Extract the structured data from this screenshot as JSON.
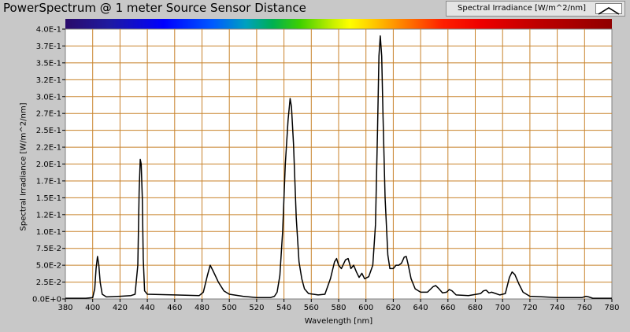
{
  "chart_data": {
    "type": "line",
    "title": "PowerSpectrum @ 1 meter Source Sensor Distance",
    "xlabel": "Wavelength [nm]",
    "ylabel": "Spectral Irradiance [W/m^2/nm]",
    "xlim": [
      380,
      780
    ],
    "ylim": [
      0,
      0.4
    ],
    "grid": true,
    "legend_position": "top-right",
    "x_ticks": [
      380,
      400,
      420,
      440,
      460,
      480,
      500,
      520,
      540,
      560,
      580,
      600,
      620,
      640,
      660,
      680,
      700,
      720,
      740,
      760,
      780
    ],
    "y_ticks": [
      {
        "value": 0.0,
        "label": "0.0E+0"
      },
      {
        "value": 0.025,
        "label": "2.5E-2"
      },
      {
        "value": 0.05,
        "label": "5.0E-2"
      },
      {
        "value": 0.075,
        "label": "7.5E-2"
      },
      {
        "value": 0.1,
        "label": "1.0E-1"
      },
      {
        "value": 0.125,
        "label": "1.2E-1"
      },
      {
        "value": 0.15,
        "label": "1.5E-1"
      },
      {
        "value": 0.175,
        "label": "1.7E-1"
      },
      {
        "value": 0.2,
        "label": "2.0E-1"
      },
      {
        "value": 0.225,
        "label": "2.2E-1"
      },
      {
        "value": 0.25,
        "label": "2.5E-1"
      },
      {
        "value": 0.275,
        "label": "2.7E-1"
      },
      {
        "value": 0.3,
        "label": "3.0E-1"
      },
      {
        "value": 0.325,
        "label": "3.2E-1"
      },
      {
        "value": 0.35,
        "label": "3.5E-1"
      },
      {
        "value": 0.375,
        "label": "3.7E-1"
      },
      {
        "value": 0.4,
        "label": "4.0E-1"
      }
    ],
    "series": [
      {
        "name": "Spectral Irradiance [W/m^2/nm]",
        "color": "#000000",
        "points": [
          [
            380,
            0.001
          ],
          [
            395,
            0.001
          ],
          [
            400,
            0.002
          ],
          [
            401.5,
            0.015
          ],
          [
            402.5,
            0.045
          ],
          [
            403.5,
            0.063
          ],
          [
            404.5,
            0.05
          ],
          [
            405.5,
            0.025
          ],
          [
            407,
            0.007
          ],
          [
            410,
            0.003
          ],
          [
            420,
            0.004
          ],
          [
            428,
            0.005
          ],
          [
            431,
            0.007
          ],
          [
            433,
            0.05
          ],
          [
            434,
            0.16
          ],
          [
            434.8,
            0.207
          ],
          [
            435.5,
            0.2
          ],
          [
            436.3,
            0.15
          ],
          [
            437,
            0.06
          ],
          [
            438,
            0.012
          ],
          [
            440,
            0.007
          ],
          [
            460,
            0.006
          ],
          [
            478,
            0.005
          ],
          [
            481,
            0.01
          ],
          [
            484,
            0.035
          ],
          [
            486,
            0.05
          ],
          [
            488,
            0.042
          ],
          [
            492,
            0.025
          ],
          [
            496,
            0.012
          ],
          [
            500,
            0.007
          ],
          [
            510,
            0.004
          ],
          [
            520,
            0.002
          ],
          [
            530,
            0.002
          ],
          [
            533,
            0.004
          ],
          [
            535,
            0.01
          ],
          [
            537,
            0.035
          ],
          [
            539,
            0.1
          ],
          [
            541,
            0.2
          ],
          [
            543,
            0.265
          ],
          [
            544.5,
            0.297
          ],
          [
            545.5,
            0.285
          ],
          [
            547,
            0.23
          ],
          [
            549,
            0.12
          ],
          [
            551,
            0.055
          ],
          [
            553,
            0.03
          ],
          [
            555,
            0.015
          ],
          [
            558,
            0.008
          ],
          [
            565,
            0.006
          ],
          [
            570,
            0.007
          ],
          [
            574,
            0.03
          ],
          [
            577,
            0.055
          ],
          [
            578.5,
            0.06
          ],
          [
            580,
            0.05
          ],
          [
            582,
            0.045
          ],
          [
            585,
            0.058
          ],
          [
            587,
            0.06
          ],
          [
            589,
            0.045
          ],
          [
            591,
            0.05
          ],
          [
            593,
            0.04
          ],
          [
            595,
            0.032
          ],
          [
            597,
            0.038
          ],
          [
            599,
            0.03
          ],
          [
            602,
            0.033
          ],
          [
            605,
            0.05
          ],
          [
            607,
            0.11
          ],
          [
            608.5,
            0.25
          ],
          [
            609.5,
            0.36
          ],
          [
            610.5,
            0.39
          ],
          [
            611.5,
            0.36
          ],
          [
            612.5,
            0.27
          ],
          [
            614,
            0.15
          ],
          [
            616,
            0.065
          ],
          [
            617.5,
            0.045
          ],
          [
            620,
            0.045
          ],
          [
            622,
            0.05
          ],
          [
            624,
            0.05
          ],
          [
            626,
            0.053
          ],
          [
            628,
            0.062
          ],
          [
            629.5,
            0.063
          ],
          [
            631,
            0.05
          ],
          [
            633,
            0.03
          ],
          [
            636,
            0.015
          ],
          [
            640,
            0.01
          ],
          [
            645,
            0.01
          ],
          [
            649,
            0.018
          ],
          [
            651,
            0.02
          ],
          [
            653,
            0.016
          ],
          [
            656,
            0.009
          ],
          [
            659,
            0.01
          ],
          [
            661,
            0.014
          ],
          [
            663,
            0.012
          ],
          [
            666,
            0.006
          ],
          [
            675,
            0.005
          ],
          [
            684,
            0.008
          ],
          [
            686,
            0.012
          ],
          [
            688,
            0.013
          ],
          [
            690,
            0.009
          ],
          [
            692,
            0.01
          ],
          [
            695,
            0.008
          ],
          [
            698,
            0.006
          ],
          [
            702,
            0.008
          ],
          [
            705,
            0.032
          ],
          [
            707,
            0.04
          ],
          [
            709,
            0.036
          ],
          [
            712,
            0.022
          ],
          [
            715,
            0.01
          ],
          [
            720,
            0.004
          ],
          [
            730,
            0.003
          ],
          [
            740,
            0.002
          ],
          [
            750,
            0.002
          ],
          [
            758,
            0.002
          ],
          [
            761,
            0.004
          ],
          [
            763,
            0.003
          ],
          [
            766,
            0.001
          ],
          [
            780,
            0.001
          ]
        ]
      }
    ]
  }
}
